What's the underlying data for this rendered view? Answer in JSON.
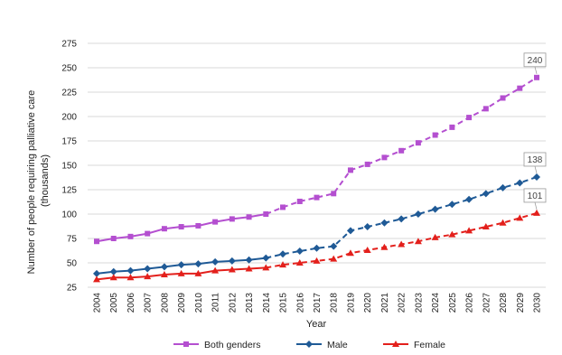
{
  "chart_data": {
    "type": "line",
    "xlabel": "Year",
    "ylabel": "Number of people requiring palliative care (thousands)",
    "ylabel_lines": [
      "Number of people requiring palliative care",
      "(thousands)"
    ],
    "ylim": [
      25,
      275
    ],
    "yticks": [
      25,
      50,
      75,
      100,
      125,
      150,
      175,
      200,
      225,
      250,
      275
    ],
    "x": [
      2004,
      2005,
      2006,
      2007,
      2008,
      2009,
      2010,
      2011,
      2012,
      2013,
      2014,
      2015,
      2016,
      2017,
      2018,
      2019,
      2020,
      2021,
      2022,
      2023,
      2024,
      2025,
      2026,
      2027,
      2028,
      2029,
      2030
    ],
    "grid": "horizontal",
    "legend_position": "bottom",
    "solid_through": 2014,
    "series": [
      {
        "name": "Both genders",
        "color": "#b44fd0",
        "marker": "square",
        "values": [
          72,
          75,
          77,
          80,
          85,
          87,
          88,
          92,
          95,
          97,
          100,
          107,
          113,
          117,
          121,
          145,
          151,
          158,
          165,
          173,
          181,
          189,
          199,
          208,
          219,
          229,
          240
        ],
        "end_label": "240"
      },
      {
        "name": "Male",
        "color": "#1f5a96",
        "marker": "diamond",
        "values": [
          39,
          41,
          42,
          44,
          46,
          48,
          49,
          51,
          52,
          53,
          55,
          59,
          62,
          65,
          67,
          83,
          87,
          91,
          95,
          100,
          105,
          110,
          115,
          121,
          127,
          132,
          138
        ],
        "end_label": "138"
      },
      {
        "name": "Female",
        "color": "#e3201c",
        "marker": "triangle",
        "values": [
          33,
          35,
          35,
          36,
          38,
          39,
          39,
          42,
          43,
          44,
          45,
          48,
          50,
          52,
          54,
          60,
          63,
          66,
          69,
          72,
          76,
          79,
          83,
          87,
          91,
          96,
          101
        ],
        "end_label": "101"
      }
    ]
  }
}
